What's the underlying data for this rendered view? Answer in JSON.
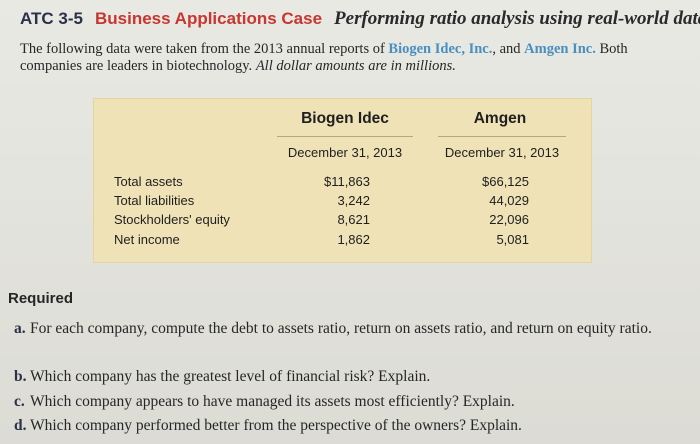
{
  "header": {
    "case_id": "ATC 3-5",
    "case_type": "Business Applications Case",
    "title": "Performing ratio analysis using real-world data"
  },
  "intro": {
    "part1": "The following data were taken from the 2013 annual reports of ",
    "company1": "Biogen Idec, Inc.",
    "part2": ", and ",
    "company2": "Amgen Inc.",
    "part3": " Both companies are leaders in biotechnology. ",
    "note": "All dollar amounts are in millions."
  },
  "table": {
    "columns": [
      {
        "name": "Biogen Idec",
        "date": "December 31, 2013"
      },
      {
        "name": "Amgen",
        "date": "December 31, 2013"
      }
    ],
    "rows": [
      {
        "label": "Total assets",
        "values": [
          "$11,863",
          "$66,125"
        ]
      },
      {
        "label": "Total liabilities",
        "values": [
          "3,242",
          "44,029"
        ]
      },
      {
        "label": "Stockholders' equity",
        "values": [
          "8,621",
          "22,096"
        ]
      },
      {
        "label": "Net income",
        "values": [
          "1,862",
          "5,081"
        ]
      }
    ]
  },
  "required": {
    "heading": "Required",
    "items": [
      {
        "letter": "a.",
        "text": "For each company, compute the debt to assets ratio, return on assets ratio, and return on equity ratio."
      },
      {
        "letter": "b.",
        "text": "Which company has the greatest level of financial risk? Explain."
      },
      {
        "letter": "c.",
        "text": "Which company appears to have managed its assets most efficiently? Explain."
      },
      {
        "letter": "d.",
        "text": "Which company performed better from the perspective of the owners? Explain."
      }
    ]
  },
  "colors": {
    "case_type": "#c8362f",
    "company_names": "#4a8fbf",
    "table_background": "#efe2b6"
  }
}
